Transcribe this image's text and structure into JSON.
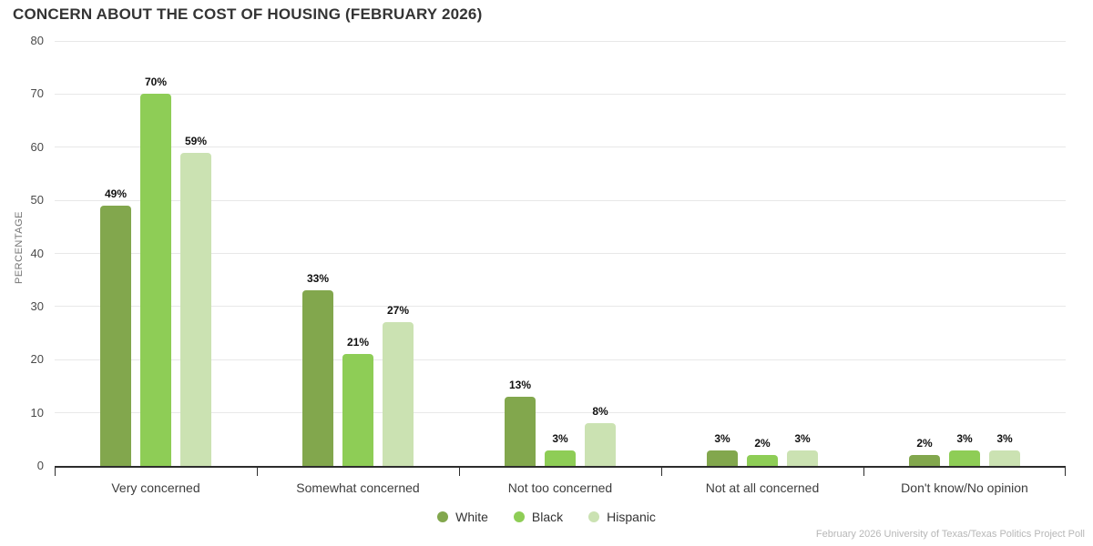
{
  "chart_data": {
    "type": "bar",
    "title": "CONCERN ABOUT THE COST OF HOUSING (FEBRUARY 2026)",
    "ylabel": "PERCENTAGE",
    "xlabel": "",
    "ylim": [
      0,
      80
    ],
    "ytick_step": 10,
    "grid": true,
    "legend_position": "bottom",
    "value_suffix": "%",
    "categories": [
      "Very concerned",
      "Somewhat concerned",
      "Not too concerned",
      "Not at all concerned",
      "Don't know/No opinion"
    ],
    "series": [
      {
        "name": "White",
        "color": "#82a74d",
        "values": [
          49,
          33,
          13,
          3,
          2
        ]
      },
      {
        "name": "Black",
        "color": "#8ecd56",
        "values": [
          70,
          21,
          3,
          2,
          3
        ]
      },
      {
        "name": "Hispanic",
        "color": "#cbe2b2",
        "values": [
          59,
          27,
          8,
          3,
          3
        ]
      }
    ],
    "source": "February 2026 University of Texas/Texas Politics Project Poll"
  }
}
